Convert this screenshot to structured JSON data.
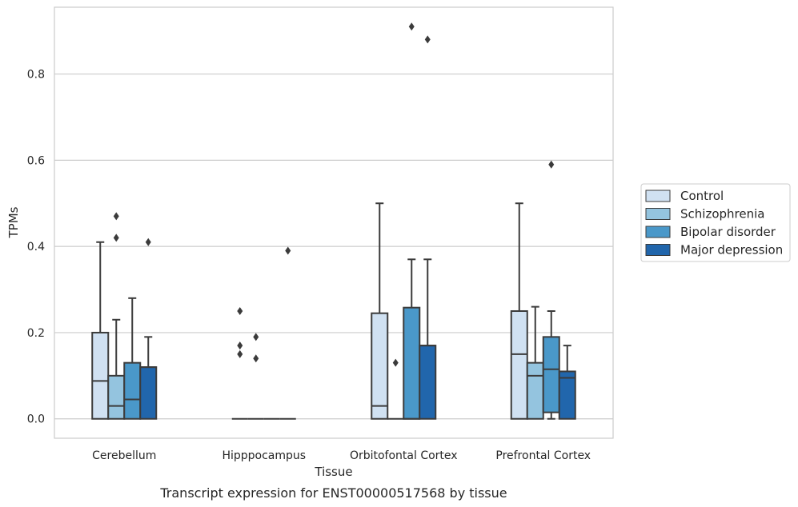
{
  "chart_data": {
    "type": "box",
    "xlabel": "Tissue",
    "ylabel": "TPMs",
    "caption": "Transcript expression for ENST00000517568 by tissue",
    "ylim": [
      -0.045,
      0.955
    ],
    "yticks": [
      "0.0",
      "0.2",
      "0.4",
      "0.6",
      "0.8"
    ],
    "ytick_values": [
      0.0,
      0.2,
      0.4,
      0.6,
      0.8
    ],
    "grid": "horizontal",
    "legend_position": "right",
    "categories": [
      "Cerebellum",
      "Hipppocampus",
      "Orbitofontal Cortex",
      "Prefrontal Cortex"
    ],
    "series": [
      {
        "name": "Control",
        "color": "#d0e1f2",
        "boxes": [
          {
            "min": 0.0,
            "q1": 0.0,
            "median": 0.088,
            "q3": 0.2,
            "max": 0.41,
            "outliers": []
          },
          {
            "min": 0.0,
            "q1": 0.0,
            "median": 0.0,
            "q3": 0.0,
            "max": 0.0,
            "outliers": [
              0.25,
              0.17,
              0.15
            ]
          },
          {
            "min": 0.0,
            "q1": 0.0,
            "median": 0.03,
            "q3": 0.245,
            "max": 0.5,
            "outliers": []
          },
          {
            "min": 0.0,
            "q1": 0.0,
            "median": 0.15,
            "q3": 0.25,
            "max": 0.5,
            "outliers": []
          }
        ]
      },
      {
        "name": "Schizophrenia",
        "color": "#94c4df",
        "boxes": [
          {
            "min": 0.0,
            "q1": 0.0,
            "median": 0.03,
            "q3": 0.1,
            "max": 0.23,
            "outliers": [
              0.47,
              0.42
            ]
          },
          {
            "min": 0.0,
            "q1": 0.0,
            "median": 0.0,
            "q3": 0.0,
            "max": 0.0,
            "outliers": [
              0.19,
              0.14
            ]
          },
          {
            "min": 0.0,
            "q1": 0.0,
            "median": 0.0,
            "q3": 0.0,
            "max": 0.0,
            "outliers": [
              0.13
            ]
          },
          {
            "min": 0.0,
            "q1": 0.0,
            "median": 0.1,
            "q3": 0.13,
            "max": 0.26,
            "outliers": []
          }
        ]
      },
      {
        "name": "Bipolar disorder",
        "color": "#4a98c9",
        "boxes": [
          {
            "min": 0.0,
            "q1": 0.0,
            "median": 0.045,
            "q3": 0.13,
            "max": 0.28,
            "outliers": []
          },
          {
            "min": 0.0,
            "q1": 0.0,
            "median": 0.0,
            "q3": 0.0,
            "max": 0.0,
            "outliers": []
          },
          {
            "min": 0.0,
            "q1": 0.0,
            "median": 0.0,
            "q3": 0.258,
            "max": 0.37,
            "outliers": [
              0.91
            ]
          },
          {
            "min": 0.0,
            "q1": 0.015,
            "median": 0.115,
            "q3": 0.19,
            "max": 0.25,
            "outliers": [
              0.59
            ]
          }
        ]
      },
      {
        "name": "Major depression",
        "color": "#2166ac",
        "boxes": [
          {
            "min": 0.0,
            "q1": 0.0,
            "median": 0.12,
            "q3": 0.12,
            "max": 0.19,
            "outliers": [
              0.41
            ]
          },
          {
            "min": 0.0,
            "q1": 0.0,
            "median": 0.0,
            "q3": 0.0,
            "max": 0.0,
            "outliers": [
              0.39
            ]
          },
          {
            "min": 0.0,
            "q1": 0.0,
            "median": 0.17,
            "q3": 0.17,
            "max": 0.37,
            "outliers": [
              0.88
            ]
          },
          {
            "min": 0.0,
            "q1": 0.0,
            "median": 0.095,
            "q3": 0.11,
            "max": 0.17,
            "outliers": []
          }
        ]
      }
    ]
  },
  "colors": {
    "axes_edge": "#cccccc",
    "grid": "#cccccc",
    "box_edge": "#3b3b3b",
    "text": "#262626"
  }
}
